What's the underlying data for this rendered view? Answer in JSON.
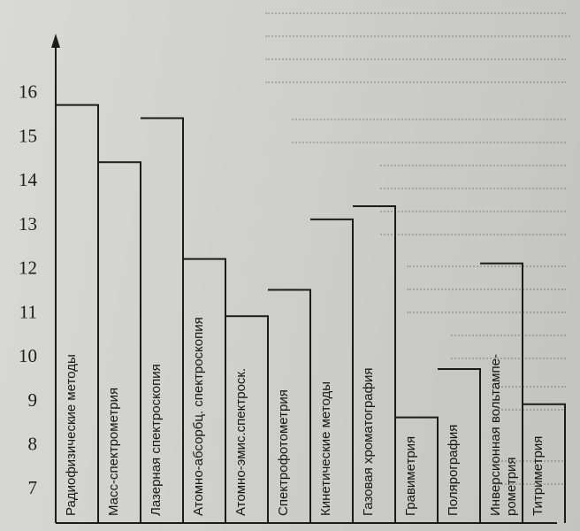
{
  "chart_data": {
    "type": "bar",
    "orientation": "vertical",
    "categories": [
      "Радиофизические методы",
      "Масс-спектрометрия",
      "Лазерная спектроскопия",
      "Атомно-абсорбц. спектроскопия",
      "Атомно-эмис.спектроск.",
      "Спектрофотометрия",
      "Кинетические методы",
      "Газовая хроматография",
      "Гравиметрия",
      "Полярография",
      "Инверсионная вольтампе-рометрия",
      "Титриметрия"
    ],
    "values": [
      15.7,
      14.4,
      15.4,
      12.2,
      10.9,
      11.5,
      13.1,
      13.4,
      8.6,
      9.7,
      12.1,
      8.9
    ],
    "yticks": [
      7,
      8,
      9,
      10,
      11,
      12,
      13,
      14,
      15,
      16
    ],
    "ylim": [
      6.2,
      17.2
    ],
    "title": "",
    "xlabel": "",
    "ylabel": "",
    "grid": false,
    "legend": "none"
  },
  "colors": {
    "ink": "#1b1b1b",
    "paper": "#d6d6d2"
  }
}
